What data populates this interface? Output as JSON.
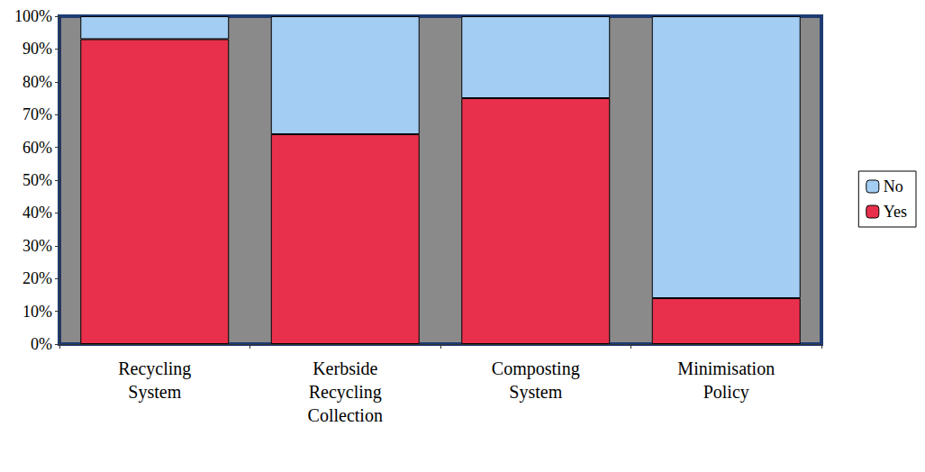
{
  "chart_data": {
    "type": "bar",
    "stacked": true,
    "categories": [
      "Recycling System",
      "Kerbside Recycling Collection",
      "Composting System",
      "Minimisation Policy"
    ],
    "series": [
      {
        "name": "Yes",
        "color": "#e8304c",
        "values": [
          93,
          64,
          75,
          14
        ]
      },
      {
        "name": "No",
        "color": "#a3cdf3",
        "values": [
          7,
          36,
          25,
          86
        ]
      }
    ],
    "ylim": [
      0,
      100
    ],
    "yticks": [
      {
        "value": 0,
        "label": "0%"
      },
      {
        "value": 10,
        "label": "10%"
      },
      {
        "value": 20,
        "label": "20%"
      },
      {
        "value": 30,
        "label": "30%"
      },
      {
        "value": 40,
        "label": "40%"
      },
      {
        "value": 50,
        "label": "50%"
      },
      {
        "value": 60,
        "label": "60%"
      },
      {
        "value": 70,
        "label": "70%"
      },
      {
        "value": 80,
        "label": "80%"
      },
      {
        "value": 90,
        "label": "90%"
      },
      {
        "value": 100,
        "label": "100%"
      }
    ],
    "grid": false,
    "legend": "right"
  }
}
